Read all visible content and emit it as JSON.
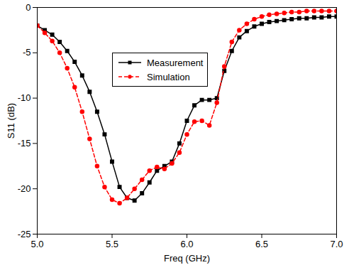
{
  "chart_data": {
    "type": "line",
    "x_label": "Freq (GHz)",
    "y_label": "S11 (dB)",
    "x": [
      5.0,
      5.05,
      5.1,
      5.15,
      5.2,
      5.25,
      5.3,
      5.35,
      5.4,
      5.45,
      5.5,
      5.55,
      5.6,
      5.65,
      5.7,
      5.75,
      5.8,
      5.85,
      5.9,
      5.95,
      6.0,
      6.05,
      6.1,
      6.15,
      6.2,
      6.25,
      6.3,
      6.35,
      6.4,
      6.45,
      6.5,
      6.55,
      6.6,
      6.65,
      6.7,
      6.75,
      6.8,
      6.85,
      6.9,
      6.95,
      7.0
    ],
    "series": [
      {
        "name": "Measurement",
        "color": "#000000",
        "marker": "square",
        "line_style": "solid",
        "values": [
          -2.0,
          -2.5,
          -3.0,
          -3.8,
          -4.8,
          -6.0,
          -7.5,
          -9.3,
          -11.5,
          -14.0,
          -17.0,
          -19.8,
          -21.0,
          -21.3,
          -20.5,
          -19.3,
          -18.0,
          -17.5,
          -17.0,
          -15.0,
          -12.5,
          -10.8,
          -10.2,
          -10.2,
          -10.0,
          -7.0,
          -4.8,
          -3.3,
          -2.6,
          -2.1,
          -1.8,
          -1.6,
          -1.5,
          -1.4,
          -1.3,
          -1.2,
          -1.2,
          -1.1,
          -1.1,
          -1.0,
          -1.0
        ]
      },
      {
        "name": "Simulation",
        "color": "#ff0000",
        "marker": "circle",
        "line_style": "dashed",
        "values": [
          -2.0,
          -2.8,
          -3.7,
          -5.0,
          -6.7,
          -8.8,
          -11.5,
          -14.5,
          -17.5,
          -19.8,
          -21.2,
          -21.6,
          -21.0,
          -20.0,
          -19.0,
          -18.0,
          -17.6,
          -17.8,
          -17.2,
          -16.0,
          -14.0,
          -12.6,
          -12.5,
          -13.0,
          -10.5,
          -6.5,
          -3.8,
          -2.5,
          -1.8,
          -1.3,
          -1.0,
          -0.8,
          -0.7,
          -0.6,
          -0.5,
          -0.5,
          -0.4,
          -0.4,
          -0.4,
          -0.4,
          -0.4
        ]
      }
    ],
    "xlim": [
      5.0,
      7.0
    ],
    "xticks": [
      {
        "value": 5.0,
        "label": "5.0"
      },
      {
        "value": 5.5,
        "label": "5.5"
      },
      {
        "value": 6.0,
        "label": "6.0"
      },
      {
        "value": 6.5,
        "label": "6.5"
      },
      {
        "value": 7.0,
        "label": "7.0"
      }
    ],
    "ylim": [
      -25,
      0
    ],
    "yticks": [
      -25,
      -20,
      -15,
      -10,
      -5,
      0
    ],
    "grid": false,
    "legend": "upper left"
  }
}
